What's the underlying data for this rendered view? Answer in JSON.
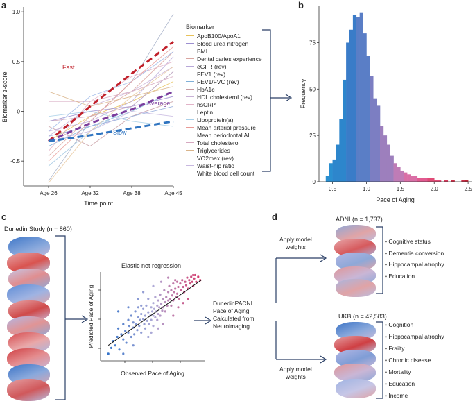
{
  "panel_letters": {
    "a": "a",
    "b": "b",
    "c": "c",
    "d": "d"
  },
  "panel_a": {
    "ylabel": "Biomarker z-score",
    "xlabel": "Time point",
    "legend_title": "Biomarker",
    "curve_labels": {
      "fast": "Fast",
      "average": "Average",
      "slow": "Slow"
    },
    "curve_colors": {
      "fast": "#c0202a",
      "average": "#7b3c9c",
      "slow": "#2f74c0"
    }
  },
  "panel_b": {
    "xlabel": "Pace of Aging",
    "ylabel": "Frequency"
  },
  "panel_c": {
    "cohort_title": "Dunedin Study (n = 860)",
    "scatter_title": "Elastic net regression",
    "scatter_xlabel": "Observed Pace of Aging",
    "scatter_ylabel": "Predicted Pace of Aging",
    "output_lines": [
      "DunedinPACNI",
      "Pace of Aging",
      "Calculated from",
      "Neuroimaging"
    ]
  },
  "panel_d": {
    "adni_title": "ADNI (n = 1,737)",
    "ukb_title": "UKB (n = 42,583)",
    "apply_label_1": [
      "Apply model",
      "weights"
    ],
    "apply_label_2": [
      "Apply model",
      "weights"
    ],
    "adni_outcomes": [
      "• Cognitive status",
      "• Dementia conversion",
      "• Hippocampal atrophy",
      "• Education"
    ],
    "ukb_outcomes": [
      "• Cognition",
      "• Hippocampal atrophy",
      "• Frailty",
      "• Chronic disease",
      "• Mortality",
      "• Education",
      "• Income"
    ]
  },
  "chart_data": [
    {
      "type": "line",
      "title": "",
      "xlabel": "Time point",
      "ylabel": "Biomarker z-score",
      "categories": [
        "Age 26",
        "Age 32",
        "Age 38",
        "Age 45"
      ],
      "ylim": [
        -0.75,
        1.05
      ],
      "yticks": [
        "-0.5",
        "0",
        "0.5",
        "1.0"
      ],
      "legend": {
        "title": "Biomarker",
        "entries": [
          "ApoB100/ApoA1",
          "Blood urea nitrogen",
          "BMI",
          "Dental caries experience",
          "eGFR (rev)",
          "FEV1 (rev)",
          "FEV1/FVC (rev)",
          "HbA1c",
          "HDL cholesterol (rev)",
          "hsCRP",
          "Leptin",
          "Lipoprotein(a)",
          "Mean arterial pressure",
          "Mean periodontal AL",
          "Total cholesterol",
          "Triglycerides",
          "VO2max (rev)",
          "Waist-hip ratio",
          "White blood cell count"
        ],
        "colors": [
          "#e8c25a",
          "#9c8fd0",
          "#a6b0c8",
          "#d9a5a0",
          "#b7a7d8",
          "#9cc3e0",
          "#7fb0d8",
          "#c59aa0",
          "#c8b1d6",
          "#e2b3c8",
          "#9cb7e8",
          "#a8d0e8",
          "#e89a96",
          "#c9a0b8",
          "#d6a8c0",
          "#d9b48a",
          "#e8c8a0",
          "#c8b8e0",
          "#8fa8d8"
        ]
      },
      "series": [
        {
          "name": "Fast",
          "values": [
            -0.3,
            0.05,
            0.38,
            0.7
          ],
          "style": "dashed-bold"
        },
        {
          "name": "Average",
          "values": [
            -0.3,
            -0.12,
            0.02,
            0.2
          ],
          "style": "dashed-bold"
        },
        {
          "name": "Slow",
          "values": [
            -0.3,
            -0.24,
            -0.17,
            -0.1
          ],
          "style": "dashed-bold"
        },
        {
          "name": "ApoB100/ApoA1",
          "values": [
            -0.3,
            -0.05,
            0.1,
            0.3
          ]
        },
        {
          "name": "Blood urea nitrogen",
          "values": [
            -0.1,
            0.0,
            0.05,
            0.15
          ]
        },
        {
          "name": "BMI",
          "values": [
            -0.7,
            -0.1,
            0.3,
            0.98
          ]
        },
        {
          "name": "Dental caries experience",
          "values": [
            -0.45,
            -0.05,
            0.2,
            0.6
          ]
        },
        {
          "name": "eGFR (rev)",
          "values": [
            -0.2,
            -0.1,
            0.1,
            0.55
          ]
        },
        {
          "name": "FEV1 (rev)",
          "values": [
            -0.55,
            -0.2,
            0.05,
            0.4
          ]
        },
        {
          "name": "FEV1/FVC (rev)",
          "values": [
            -0.35,
            -0.15,
            0.0,
            0.2
          ]
        },
        {
          "name": "HbA1c",
          "values": [
            -0.15,
            -0.35,
            -0.05,
            0.1
          ]
        },
        {
          "name": "HDL cholesterol (rev)",
          "values": [
            -0.25,
            0.05,
            0.2,
            0.45
          ]
        },
        {
          "name": "hsCRP",
          "values": [
            -0.4,
            0.1,
            0.35,
            0.5
          ]
        },
        {
          "name": "Leptin",
          "values": [
            -0.2,
            0.15,
            0.3,
            0.6
          ]
        },
        {
          "name": "Lipoprotein(a)",
          "values": [
            -0.05,
            0.0,
            -0.1,
            -0.15
          ]
        },
        {
          "name": "Mean arterial pressure",
          "values": [
            -0.5,
            -0.1,
            0.3,
            0.65
          ]
        },
        {
          "name": "Mean periodontal AL",
          "values": [
            -0.1,
            -0.05,
            0.05,
            0.4
          ]
        },
        {
          "name": "Total cholesterol",
          "values": [
            0.1,
            0.1,
            0.2,
            0.35
          ]
        },
        {
          "name": "Triglycerides",
          "values": [
            0.2,
            0.05,
            0.15,
            0.25
          ]
        },
        {
          "name": "VO2max (rev)",
          "values": [
            -0.72,
            -0.2,
            0.15,
            0.45
          ]
        },
        {
          "name": "Waist-hip ratio",
          "values": [
            -0.3,
            -0.2,
            0.0,
            -0.05
          ]
        },
        {
          "name": "White blood cell count",
          "values": [
            -0.25,
            -0.15,
            -0.05,
            0.05
          ]
        }
      ]
    },
    {
      "type": "bar",
      "title": "",
      "xlabel": "Pace of Aging",
      "ylabel": "Frequency",
      "xlim": [
        0.3,
        2.55
      ],
      "ylim": [
        0,
        95
      ],
      "xticks": [
        "0.5",
        "1.0",
        "1.5",
        "2.0",
        "2.5"
      ],
      "yticks": [
        "0",
        "25",
        "50",
        "75"
      ],
      "bin_width": 0.05,
      "bin_starts": [
        0.4,
        0.45,
        0.5,
        0.55,
        0.6,
        0.65,
        0.7,
        0.75,
        0.8,
        0.85,
        0.9,
        0.95,
        1.0,
        1.05,
        1.1,
        1.15,
        1.2,
        1.25,
        1.3,
        1.35,
        1.4,
        1.45,
        1.5,
        1.55,
        1.6,
        1.65,
        1.7,
        1.75,
        1.8,
        1.85,
        1.9,
        1.95,
        2.0,
        2.05,
        2.15,
        2.25,
        2.4,
        2.45
      ],
      "values": [
        3,
        10,
        12,
        20,
        34,
        55,
        75,
        82,
        90,
        89,
        91,
        80,
        68,
        57,
        45,
        41,
        30,
        25,
        20,
        14,
        10,
        8,
        6,
        5,
        4,
        3,
        3,
        2,
        2,
        2,
        2,
        2,
        1,
        1,
        1,
        1,
        1,
        1
      ]
    },
    {
      "type": "scatter",
      "title": "Elastic net regression",
      "xlabel": "Observed Pace of Aging",
      "ylabel": "Predicted Pace of Aging",
      "points": [
        [
          0.05,
          0.05
        ],
        [
          0.08,
          0.12
        ],
        [
          0.1,
          0.2
        ],
        [
          0.12,
          0.15
        ],
        [
          0.14,
          0.25
        ],
        [
          0.15,
          0.35
        ],
        [
          0.16,
          0.1
        ],
        [
          0.18,
          0.28
        ],
        [
          0.2,
          0.4
        ],
        [
          0.2,
          0.22
        ],
        [
          0.22,
          0.32
        ],
        [
          0.23,
          0.18
        ],
        [
          0.25,
          0.45
        ],
        [
          0.25,
          0.3
        ],
        [
          0.26,
          0.38
        ],
        [
          0.28,
          0.25
        ],
        [
          0.28,
          0.5
        ],
        [
          0.3,
          0.36
        ],
        [
          0.3,
          0.42
        ],
        [
          0.31,
          0.28
        ],
        [
          0.32,
          0.55
        ],
        [
          0.33,
          0.4
        ],
        [
          0.34,
          0.33
        ],
        [
          0.35,
          0.48
        ],
        [
          0.35,
          0.6
        ],
        [
          0.36,
          0.38
        ],
        [
          0.37,
          0.45
        ],
        [
          0.38,
          0.52
        ],
        [
          0.38,
          0.3
        ],
        [
          0.4,
          0.46
        ],
        [
          0.4,
          0.58
        ],
        [
          0.41,
          0.4
        ],
        [
          0.42,
          0.5
        ],
        [
          0.42,
          0.35
        ],
        [
          0.43,
          0.62
        ],
        [
          0.44,
          0.44
        ],
        [
          0.45,
          0.54
        ],
        [
          0.45,
          0.7
        ],
        [
          0.46,
          0.4
        ],
        [
          0.47,
          0.5
        ],
        [
          0.48,
          0.6
        ],
        [
          0.48,
          0.45
        ],
        [
          0.49,
          0.55
        ],
        [
          0.5,
          0.5
        ],
        [
          0.5,
          0.65
        ],
        [
          0.5,
          0.38
        ],
        [
          0.51,
          0.58
        ],
        [
          0.52,
          0.48
        ],
        [
          0.52,
          0.72
        ],
        [
          0.53,
          0.55
        ],
        [
          0.54,
          0.62
        ],
        [
          0.54,
          0.45
        ],
        [
          0.55,
          0.68
        ],
        [
          0.55,
          0.52
        ],
        [
          0.56,
          0.6
        ],
        [
          0.57,
          0.75
        ],
        [
          0.57,
          0.5
        ],
        [
          0.58,
          0.64
        ],
        [
          0.59,
          0.56
        ],
        [
          0.6,
          0.7
        ],
        [
          0.6,
          0.6
        ],
        [
          0.61,
          0.8
        ],
        [
          0.62,
          0.66
        ],
        [
          0.62,
          0.55
        ],
        [
          0.63,
          0.72
        ],
        [
          0.64,
          0.62
        ],
        [
          0.65,
          0.78
        ],
        [
          0.65,
          0.68
        ],
        [
          0.66,
          0.85
        ],
        [
          0.67,
          0.7
        ],
        [
          0.68,
          0.62
        ],
        [
          0.68,
          0.8
        ],
        [
          0.69,
          0.74
        ],
        [
          0.7,
          0.88
        ],
        [
          0.7,
          0.68
        ],
        [
          0.71,
          0.78
        ],
        [
          0.72,
          0.82
        ],
        [
          0.73,
          0.72
        ],
        [
          0.74,
          0.9
        ],
        [
          0.74,
          0.76
        ],
        [
          0.75,
          0.84
        ],
        [
          0.76,
          0.7
        ],
        [
          0.77,
          0.88
        ],
        [
          0.78,
          0.8
        ],
        [
          0.79,
          0.92
        ],
        [
          0.8,
          0.84
        ],
        [
          0.81,
          0.78
        ],
        [
          0.82,
          0.9
        ],
        [
          0.83,
          0.86
        ],
        [
          0.84,
          0.95
        ],
        [
          0.85,
          0.82
        ],
        [
          0.86,
          0.92
        ],
        [
          0.87,
          0.88
        ],
        [
          0.88,
          0.96
        ],
        [
          0.89,
          0.9
        ],
        [
          0.9,
          0.85
        ],
        [
          0.91,
          0.94
        ],
        [
          0.92,
          0.98
        ],
        [
          0.93,
          0.9
        ],
        [
          0.95,
          0.96
        ],
        [
          0.97,
          0.92
        ],
        [
          0.15,
          0.55
        ],
        [
          0.3,
          0.15
        ],
        [
          0.45,
          0.25
        ],
        [
          0.6,
          0.4
        ],
        [
          0.35,
          0.7
        ],
        [
          0.5,
          0.85
        ],
        [
          0.7,
          0.5
        ],
        [
          0.8,
          0.65
        ],
        [
          0.25,
          0.6
        ],
        [
          0.55,
          0.35
        ],
        [
          0.65,
          0.95
        ],
        [
          0.4,
          0.78
        ],
        [
          0.75,
          0.6
        ],
        [
          0.85,
          0.7
        ],
        [
          0.2,
          0.05
        ],
        [
          0.9,
          0.98
        ],
        [
          0.58,
          0.9
        ],
        [
          0.48,
          0.3
        ],
        [
          0.72,
          0.92
        ],
        [
          0.38,
          0.62
        ]
      ],
      "fit_line": [
        [
          0.05,
          0.15
        ],
        [
          0.98,
          0.92
        ]
      ]
    }
  ]
}
